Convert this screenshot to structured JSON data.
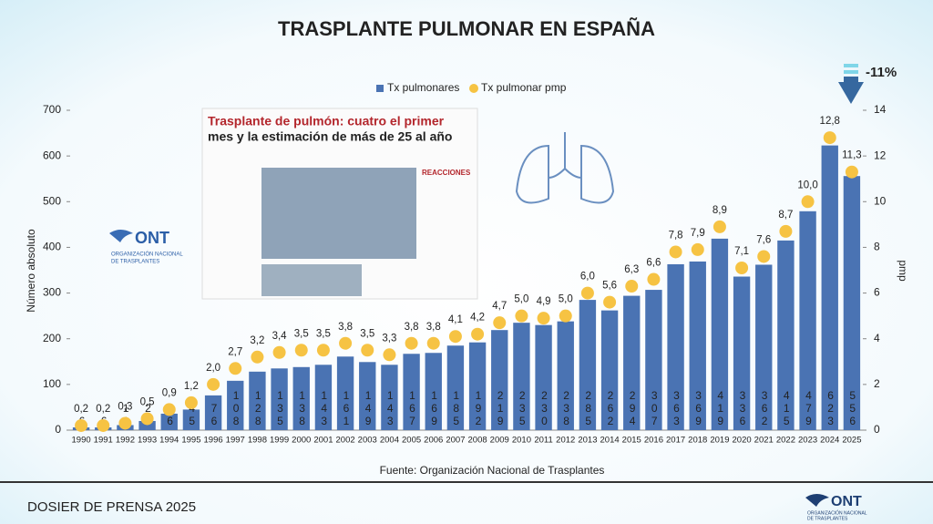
{
  "chart_data": {
    "type": "bar",
    "title": "TRASPLANTE PULMONAR EN ESPAÑA",
    "categories": [
      "1990",
      "1991",
      "1992",
      "1993",
      "1994",
      "1995",
      "1996",
      "1997",
      "1998",
      "1999",
      "2000",
      "2001",
      "2002",
      "2003",
      "2004",
      "2005",
      "2006",
      "2007",
      "2008",
      "2009",
      "2010",
      "2011",
      "2012",
      "2013",
      "2014",
      "2015",
      "2016",
      "2017",
      "2018",
      "2019",
      "2020",
      "2021",
      "2022",
      "2023",
      "2024",
      "2025"
    ],
    "series": [
      {
        "name": "Tx pulmonares",
        "color": "#4a73b3",
        "values": [
          6,
          6,
          11,
          20,
          36,
          45,
          76,
          108,
          128,
          135,
          138,
          143,
          161,
          149,
          143,
          167,
          169,
          185,
          192,
          219,
          235,
          230,
          238,
          285,
          262,
          294,
          307,
          363,
          369,
          419,
          336,
          362,
          415,
          479,
          623,
          556
        ]
      },
      {
        "name": "Tx pulmonar pmp",
        "color": "#f6c343",
        "axis": "y2",
        "values": [
          0.2,
          0.2,
          0.3,
          0.5,
          0.9,
          1.2,
          2.0,
          2.7,
          3.2,
          3.4,
          3.5,
          3.5,
          3.8,
          3.5,
          3.3,
          3.8,
          3.8,
          4.1,
          4.2,
          4.7,
          5.0,
          4.9,
          5.0,
          6.0,
          5.6,
          6.3,
          6.6,
          7.8,
          7.9,
          8.9,
          7.1,
          7.6,
          8.7,
          10.0,
          12.8,
          11.3
        ],
        "value_labels": [
          "0,2",
          "0,2",
          "0,3",
          "0,5",
          "0,9",
          "1,2",
          "2,0",
          "2,7",
          "3,2",
          "3,4",
          "3,5",
          "3,5",
          "3,8",
          "3,5",
          "3,3",
          "3,8",
          "3,8",
          "4,1",
          "4,2",
          "4,7",
          "5,0",
          "4,9",
          "5,0",
          "6,0",
          "5,6",
          "6,3",
          "6,6",
          "7,8",
          "7,9",
          "8,9",
          "7,1",
          "7,6",
          "8,7",
          "10,0",
          "12,8",
          "11,3"
        ]
      }
    ],
    "ylabel": "Número absoluto",
    "y2label": "pmp",
    "ylim": [
      0,
      700
    ],
    "yticks": [
      0,
      100,
      200,
      300,
      400,
      500,
      600,
      700
    ],
    "y2lim": [
      0,
      14
    ],
    "y2ticks": [
      0,
      2,
      4,
      6,
      8,
      10,
      12,
      14
    ],
    "annotation": "-11%",
    "source": "Fuente: Organización Nacional de Trasplantes"
  },
  "clipping": {
    "headline": [
      "Trasplante de pulmón: cuatro el primer",
      "mes y la estimación de más de 25 al año"
    ],
    "section": "REACCIONES"
  },
  "logo": {
    "name": "ONT",
    "subtitle": [
      "ORGANIZACIÓN NACIONAL",
      "DE TRASPLANTES"
    ]
  },
  "footer": "DOSIER DE PRENSA 2025"
}
